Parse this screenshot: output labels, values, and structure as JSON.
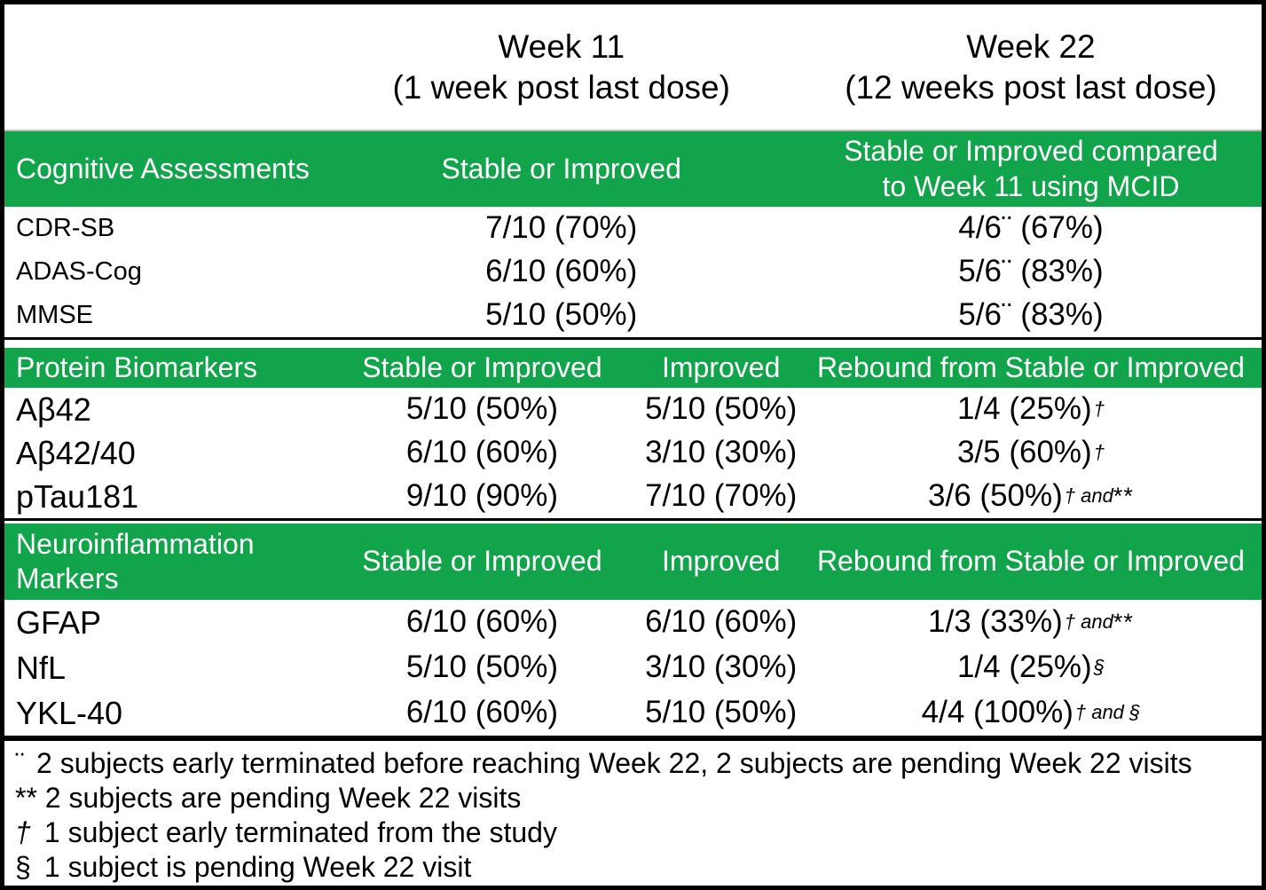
{
  "colors": {
    "green": "#11a44a",
    "header_text": "#ffffff",
    "body_text": "#000000"
  },
  "header": {
    "week11": {
      "line1": "Week 11",
      "line2": "(1 week post last dose)"
    },
    "week22": {
      "line1": "Week 22",
      "line2": "(12 weeks post last dose)"
    }
  },
  "cognitive": {
    "title": "Cognitive Assessments",
    "week11_col": "Stable or Improved",
    "week22_col_line1": "Stable or Improved compared",
    "week22_col_line2": "to Week 11 using MCID",
    "rows": [
      {
        "label": "CDR-SB",
        "week11": "7/10 (70%)",
        "week22": "4/6¨ (67%)"
      },
      {
        "label": "ADAS-Cog",
        "week11": "6/10 (60%)",
        "week22": "5/6¨ (83%)"
      },
      {
        "label": "MMSE",
        "week11": "5/10 (50%)",
        "week22": "5/6¨ (83%)"
      }
    ]
  },
  "protein": {
    "title": "Protein Biomarkers",
    "stable_col": "Stable or Improved",
    "improved_col": "Improved",
    "rebound_col": "Rebound from Stable or Improved",
    "rows": [
      {
        "label": "Aβ42",
        "stable": "5/10 (50%)",
        "improved": "5/10 (50%)",
        "rebound": "1/4 (25%)",
        "rebound_sup": "†",
        "rebound_star": ""
      },
      {
        "label": "Aβ42/40",
        "stable": "6/10 (60%)",
        "improved": "3/10 (30%)",
        "rebound": "3/5 (60%)",
        "rebound_sup": "†",
        "rebound_star": ""
      },
      {
        "label": "pTau181",
        "stable": "9/10 (90%)",
        "improved": "7/10 (70%)",
        "rebound": "3/6 (50%)",
        "rebound_sup": "† and",
        "rebound_star": "**"
      }
    ]
  },
  "neuro": {
    "title_line1": "Neuroinflammation",
    "title_line2": "Markers",
    "stable_col": "Stable or Improved",
    "improved_col": "Improved",
    "rebound_col": "Rebound from Stable or Improved",
    "rows": [
      {
        "label": "GFAP",
        "stable": "6/10 (60%)",
        "improved": "6/10 (60%)",
        "rebound": "1/3 (33%)",
        "rebound_sup": "† and",
        "rebound_star": "**"
      },
      {
        "label": "NfL",
        "stable": "5/10 (50%)",
        "improved": "3/10 (30%)",
        "rebound": "1/4 (25%)",
        "rebound_sup": "§",
        "rebound_star": ""
      },
      {
        "label": "YKL-40",
        "stable": "6/10 (60%)",
        "improved": "5/10 (50%)",
        "rebound": "4/4 (100%)",
        "rebound_sup": "† and §",
        "rebound_star": ""
      }
    ]
  },
  "footnotes": [
    {
      "marker": "¨",
      "text": "2 subjects early terminated before reaching Week 22, 2 subjects are pending Week 22 visits"
    },
    {
      "marker": "**",
      "text": "2 subjects are pending Week 22 visits"
    },
    {
      "marker": "†",
      "text": "1 subject early terminated from the study"
    },
    {
      "marker": "§",
      "text": "1 subject is pending Week 22 visit"
    }
  ]
}
